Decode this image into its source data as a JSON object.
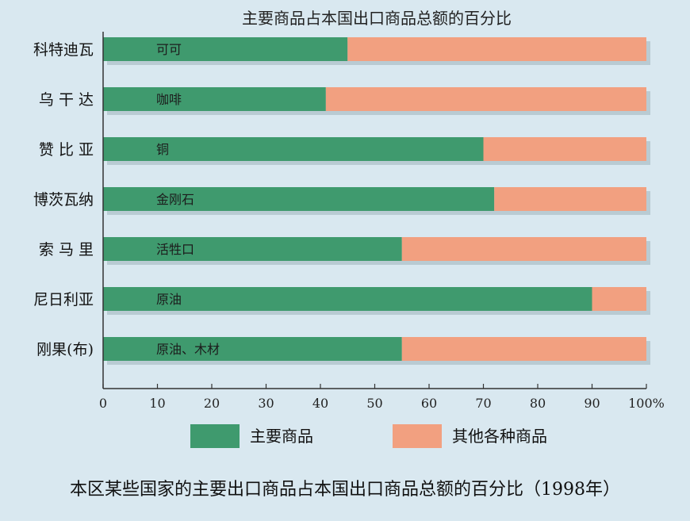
{
  "chart_data": {
    "type": "bar",
    "orientation": "horizontal",
    "stacked": true,
    "title": "主要商品占本国出口商品总额的百分比",
    "caption": "本区某些国家的主要出口商品占本国出口商品总额的百分比（1998年）",
    "categories": [
      "科特迪瓦",
      "乌 干 达",
      "赞 比 亚",
      "博茨瓦纳",
      "索 马 里",
      "尼日利亚",
      "刚果(布)"
    ],
    "bar_labels": [
      "可可",
      "咖啡",
      "铜",
      "金刚石",
      "活牲口",
      "原油",
      "原油、木材"
    ],
    "series": [
      {
        "name": "主要商品",
        "values": [
          45,
          41,
          70,
          72,
          55,
          90,
          55
        ]
      },
      {
        "name": "其他各种商品",
        "values": [
          55,
          59,
          30,
          28,
          45,
          10,
          45
        ]
      }
    ],
    "xlim": [
      0,
      100
    ],
    "x_ticks": [
      "0",
      "10",
      "20",
      "30",
      "40",
      "50",
      "60",
      "70",
      "80",
      "90",
      "100%"
    ],
    "grid": false,
    "legend_position": "bottom",
    "colors": {
      "main": "#3f9a6e",
      "other": "#f2a080",
      "background": "#d9e8f0",
      "axis": "#333333"
    }
  }
}
